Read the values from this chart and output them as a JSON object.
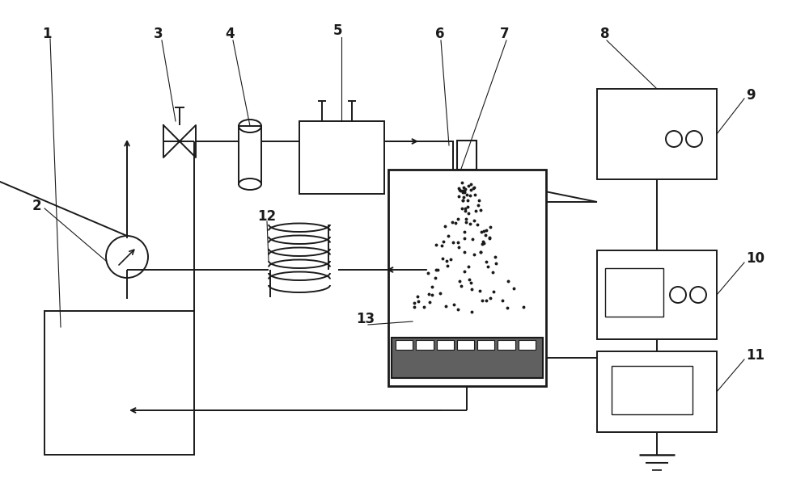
{
  "bg_color": "#ffffff",
  "lc": "#1a1a1a",
  "lw": 1.4,
  "fig_w": 10.0,
  "fig_h": 5.98
}
